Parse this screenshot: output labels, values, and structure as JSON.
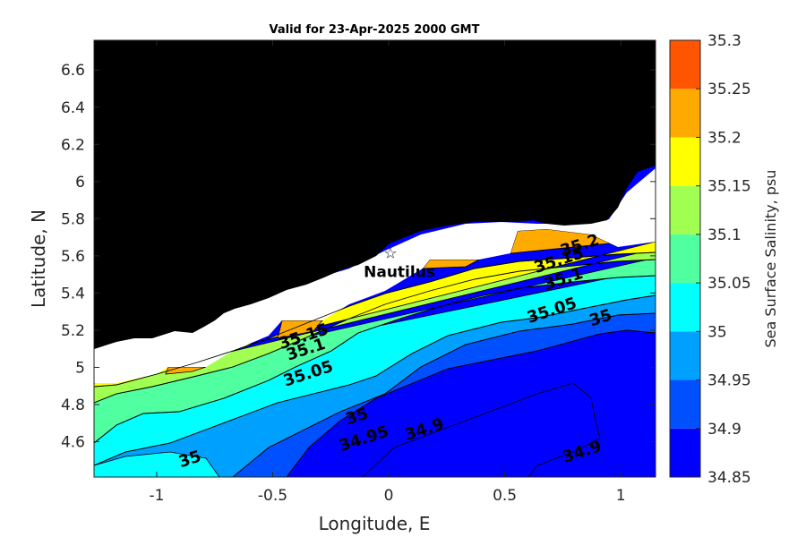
{
  "chart_data": {
    "type": "contour",
    "title": "Valid for 23-Apr-2025 2000 GMT",
    "xlabel": "Longitude, E",
    "ylabel": "Latitude, N",
    "xlim": [
      -1.27,
      1.15
    ],
    "ylim": [
      4.41,
      6.76
    ],
    "xticks": [
      -1,
      -0.5,
      0,
      0.5,
      1
    ],
    "xtick_labels": [
      "-1",
      "-0.5",
      "0",
      "0.5",
      "1"
    ],
    "yticks": [
      4.6,
      4.8,
      5,
      5.2,
      5.4,
      5.6,
      5.8,
      6,
      6.2,
      6.4,
      6.6
    ],
    "ytick_labels": [
      "4.6",
      "4.8",
      "5",
      "5.2",
      "5.4",
      "5.6",
      "5.8",
      "6",
      "6.2",
      "6.4",
      "6.6"
    ],
    "colorbar": {
      "label": "Sea Surface Salinity, psu",
      "levels": [
        34.85,
        34.9,
        34.95,
        35,
        35.05,
        35.1,
        35.15,
        35.2,
        35.25,
        35.3
      ],
      "level_labels": [
        "34.85",
        "34.9",
        "34.95",
        "35",
        "35.05",
        "35.1",
        "35.15",
        "35.2",
        "35.25",
        "35.3"
      ],
      "colors": [
        "#0000ff",
        "#0050ff",
        "#00a0ff",
        "#00ffff",
        "#50ffa0",
        "#a0ff50",
        "#ffff00",
        "#ffaa00",
        "#ff5500"
      ]
    },
    "land_color": "#000000",
    "nodata_color": "#ffffff",
    "contour_labels": [
      {
        "text": "35.2",
        "x": 0.83,
        "y": 5.63
      },
      {
        "text": "35.15",
        "x": 0.74,
        "y": 5.55
      },
      {
        "text": "35.1",
        "x": 0.76,
        "y": 5.45
      },
      {
        "text": "35.05",
        "x": 0.71,
        "y": 5.28
      },
      {
        "text": "35",
        "x": 0.92,
        "y": 5.24
      },
      {
        "text": "35.15",
        "x": -0.36,
        "y": 5.14
      },
      {
        "text": "35.1",
        "x": -0.35,
        "y": 5.07
      },
      {
        "text": "35.05",
        "x": -0.34,
        "y": 4.94
      },
      {
        "text": "35",
        "x": -0.13,
        "y": 4.71
      },
      {
        "text": "34.95",
        "x": -0.1,
        "y": 4.59
      },
      {
        "text": "34.9",
        "x": 0.16,
        "y": 4.64
      },
      {
        "text": "35",
        "x": -0.85,
        "y": 4.48
      },
      {
        "text": "34.9",
        "x": 0.84,
        "y": 4.52
      }
    ],
    "station": {
      "name": "Nautilus",
      "x": 0.0,
      "y": 5.62
    }
  }
}
